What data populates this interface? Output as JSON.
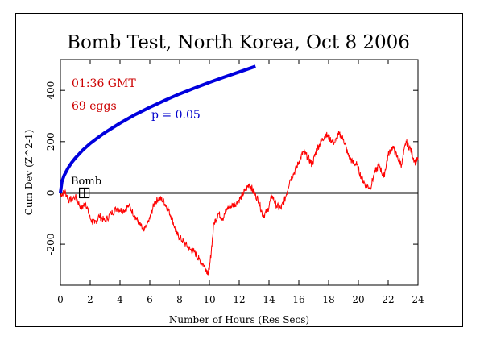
{
  "chart_data": {
    "type": "line",
    "title": "Bomb Test, North Korea, Oct 8 2006",
    "xlabel": "Number of Hours (Res Secs)",
    "ylabel": "Cum Dev (Z^2-1)",
    "xlim": [
      0,
      24
    ],
    "ylim": [
      -360,
      520
    ],
    "xticks": [
      0,
      2,
      4,
      6,
      8,
      10,
      12,
      14,
      16,
      18,
      20,
      22,
      24
    ],
    "yticks": [
      -200,
      0,
      200,
      400
    ],
    "annotations": {
      "time": "01:36 GMT",
      "eggs": "69 eggs",
      "p_label": "p = 0.05",
      "event_label": "Bomb"
    },
    "event_x": 1.6,
    "zero_line": 0,
    "colors": {
      "data": "#ff0000",
      "envelope": "#0000dd",
      "axis": "#000000",
      "annot": "#cc0000"
    },
    "series": [
      {
        "name": "",
        "color": "#ff0000",
        "x": [
          0,
          0.3,
          0.6,
          1.0,
          1.4,
          1.7,
          2.0,
          2.3,
          2.6,
          3.0,
          3.4,
          3.8,
          4.2,
          4.6,
          5.0,
          5.3,
          5.6,
          6.0,
          6.3,
          6.6,
          6.9,
          7.2,
          7.5,
          7.8,
          8.1,
          8.4,
          8.7,
          9.0,
          9.3,
          9.6,
          9.9,
          10.0,
          10.3,
          10.6,
          10.9,
          11.2,
          11.5,
          11.8,
          12.1,
          12.4,
          12.7,
          13.0,
          13.3,
          13.6,
          13.9,
          14.2,
          14.5,
          14.8,
          15.1,
          15.4,
          15.7,
          16.0,
          16.3,
          16.6,
          16.9,
          17.2,
          17.5,
          17.8,
          18.1,
          18.4,
          18.7,
          19.0,
          19.3,
          19.6,
          19.9,
          20.2,
          20.5,
          20.8,
          21.1,
          21.4,
          21.7,
          22.0,
          22.3,
          22.6,
          22.9,
          23.2,
          23.5,
          23.8,
          24.0
        ],
        "y": [
          -10,
          5,
          -30,
          -15,
          -60,
          -40,
          -100,
          -120,
          -90,
          -110,
          -80,
          -60,
          -70,
          -50,
          -90,
          -120,
          -150,
          -100,
          -40,
          -20,
          -30,
          -60,
          -100,
          -160,
          -180,
          -200,
          -220,
          -230,
          -260,
          -280,
          -310,
          -300,
          -120,
          -80,
          -100,
          -60,
          -50,
          -40,
          -20,
          10,
          35,
          0,
          -30,
          -90,
          -70,
          -10,
          -50,
          -60,
          -20,
          50,
          80,
          120,
          160,
          140,
          110,
          170,
          200,
          230,
          210,
          195,
          230,
          210,
          150,
          120,
          110,
          60,
          30,
          20,
          80,
          110,
          60,
          150,
          180,
          140,
          110,
          200,
          170,
          120,
          130
        ]
      },
      {
        "name": "",
        "color": "#0000dd",
        "x": [
          0,
          0.1,
          0.25,
          0.5,
          0.75,
          1,
          1.5,
          2,
          2.5,
          3,
          4,
          5,
          6,
          7,
          8,
          9,
          10,
          11,
          12,
          13.1
        ],
        "y": [
          0,
          43,
          68,
          96,
          118,
          136,
          167,
          193,
          215,
          236,
          272,
          305,
          334,
          361,
          386,
          409,
          431,
          452,
          472,
          494
        ]
      }
    ]
  }
}
